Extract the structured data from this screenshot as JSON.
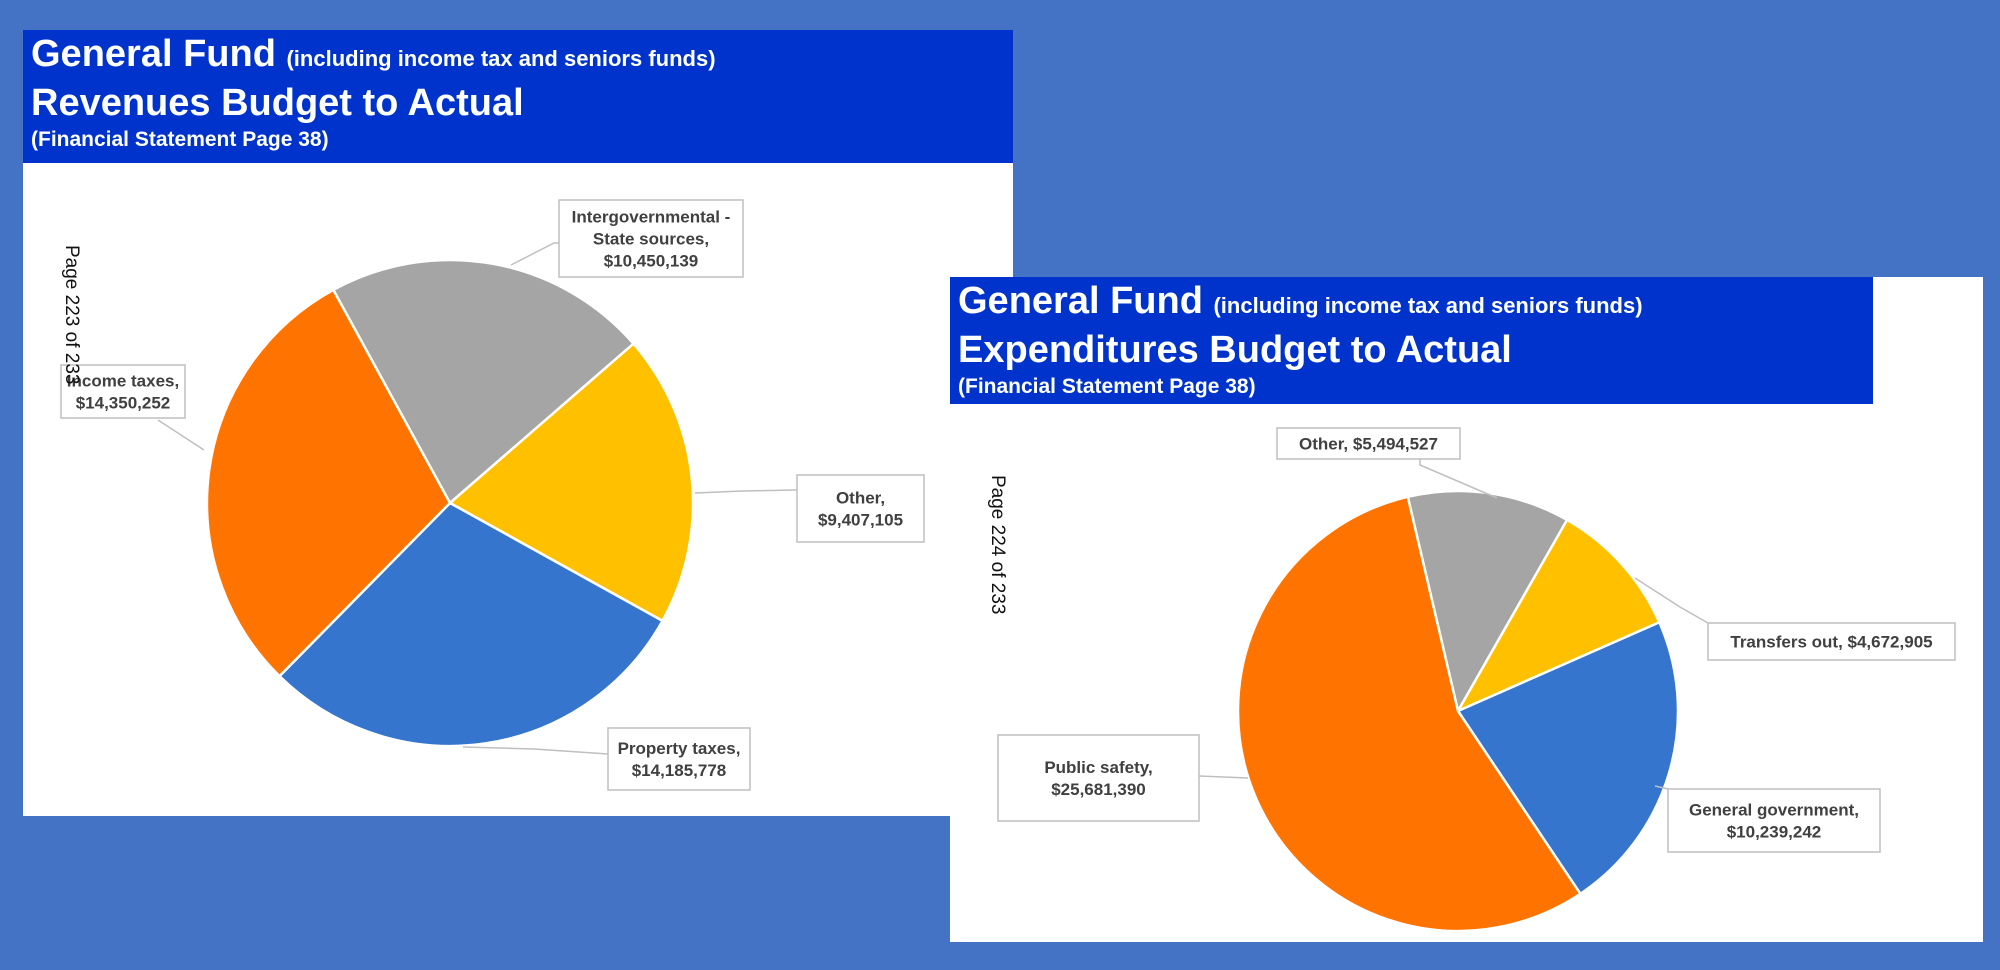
{
  "slides": {
    "revenues": {
      "title_main": "General Fund",
      "title_note": "(including income tax and seniors funds)",
      "title_line2": "Revenues Budget to Actual",
      "title_line3": "(Financial Statement Page 38)",
      "page_note": "Page 223 of 233"
    },
    "expenditures": {
      "title_main": "General Fund",
      "title_note": "(including income tax and seniors funds)",
      "title_line2": "Expenditures Budget to Actual",
      "title_line3": "(Financial Statement Page 38)",
      "page_note": "Page 224 of 233"
    }
  },
  "chart_data": [
    {
      "type": "pie",
      "title": "Revenues Budget to Actual",
      "slices": [
        {
          "label": "Intergovernmental - State sources",
          "label_lines": [
            "Intergovernmental -",
            "State sources,",
            "$10,450,139"
          ],
          "value": 10450139,
          "color": "#a5a5a5"
        },
        {
          "label": "Other",
          "label_lines": [
            "Other,",
            "$9,407,105"
          ],
          "value": 9407105,
          "color": "#ffc000"
        },
        {
          "label": "Property taxes",
          "label_lines": [
            "Property taxes,",
            "$14,185,778"
          ],
          "value": 14185778,
          "color": "#3575ce"
        },
        {
          "label": "Income taxes",
          "label_lines": [
            "Income taxes,",
            "$14,350,252"
          ],
          "value": 14350252,
          "color": "#ff7300"
        }
      ]
    },
    {
      "type": "pie",
      "title": "Expenditures Budget to Actual",
      "slices": [
        {
          "label": "Other",
          "label_lines": [
            "Other, $5,494,527"
          ],
          "value": 5494527,
          "color": "#a5a5a5"
        },
        {
          "label": "Transfers out",
          "label_lines": [
            "Transfers out, $4,672,905"
          ],
          "value": 4672905,
          "color": "#ffc000"
        },
        {
          "label": "General government",
          "label_lines": [
            "General government,",
            "$10,239,242"
          ],
          "value": 10239242,
          "color": "#3575ce"
        },
        {
          "label": "Public safety",
          "label_lines": [
            "Public safety,",
            "$25,681,390"
          ],
          "value": 25681390,
          "color": "#ff7300"
        }
      ]
    }
  ]
}
